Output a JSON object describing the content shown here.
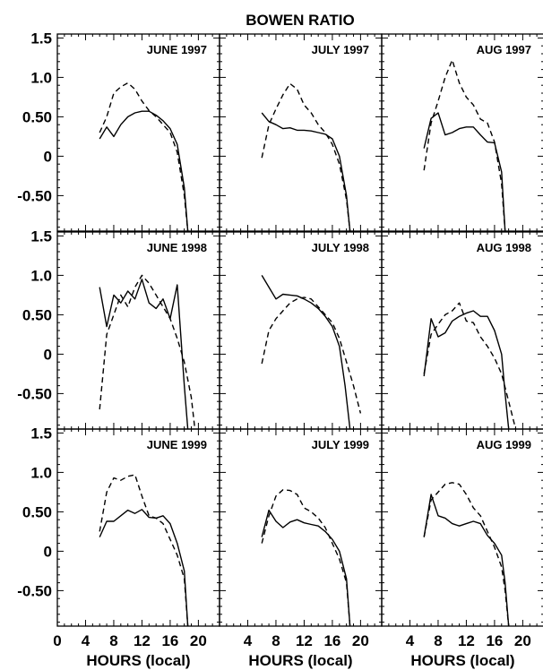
{
  "figure": {
    "title": "BOWEN RATIO",
    "xlabel": "HOURS (local)",
    "y_tick_labels": [
      "1.5",
      "1.0",
      "0.50",
      "0",
      "-0.50"
    ],
    "x_tick_labels_first": [
      "0",
      "4",
      "8",
      "12",
      "16",
      "20"
    ],
    "x_tick_labels_other": [
      "4",
      "8",
      "12",
      "16",
      "20"
    ]
  },
  "chart_data": [
    {
      "type": "line",
      "title": "JUNE 1997",
      "xlim": [
        0,
        23
      ],
      "ylim": [
        -0.95,
        1.55
      ],
      "series": [
        {
          "style": "solid",
          "x": [
            6,
            7,
            8,
            9,
            10,
            11,
            12,
            13,
            14,
            15,
            16,
            17,
            18,
            18.5
          ],
          "y": [
            0.22,
            0.37,
            0.25,
            0.4,
            0.5,
            0.55,
            0.57,
            0.57,
            0.52,
            0.45,
            0.35,
            0.15,
            -0.4,
            -0.95
          ]
        },
        {
          "style": "dashed",
          "x": [
            6,
            7,
            8,
            9,
            10,
            11,
            12,
            13,
            14,
            15,
            16,
            17,
            18,
            18.5
          ],
          "y": [
            0.3,
            0.5,
            0.8,
            0.88,
            0.93,
            0.85,
            0.7,
            0.58,
            0.5,
            0.4,
            0.3,
            0.05,
            -0.5,
            -0.95
          ]
        }
      ]
    },
    {
      "type": "line",
      "title": "JULY 1997",
      "xlim": [
        0,
        23
      ],
      "ylim": [
        -0.95,
        1.55
      ],
      "series": [
        {
          "style": "solid",
          "x": [
            6,
            7,
            8,
            9,
            10,
            11,
            12,
            13,
            14,
            15,
            16,
            17,
            18,
            18.5
          ],
          "y": [
            0.55,
            0.44,
            0.4,
            0.35,
            0.36,
            0.33,
            0.33,
            0.32,
            0.3,
            0.28,
            0.22,
            0.0,
            -0.5,
            -0.95
          ]
        },
        {
          "style": "dashed",
          "x": [
            6,
            7,
            8,
            9,
            10,
            11,
            12,
            13,
            14,
            15,
            16,
            17,
            18,
            18.5
          ],
          "y": [
            -0.02,
            0.4,
            0.6,
            0.78,
            0.92,
            0.85,
            0.65,
            0.55,
            0.4,
            0.3,
            0.15,
            -0.1,
            -0.55,
            -0.95
          ]
        }
      ]
    },
    {
      "type": "line",
      "title": "AUG 1997",
      "xlim": [
        0,
        23
      ],
      "ylim": [
        -0.95,
        1.55
      ],
      "series": [
        {
          "style": "solid",
          "x": [
            6,
            7,
            8,
            9,
            10,
            11,
            12,
            13,
            14,
            15,
            16,
            17,
            17.5
          ],
          "y": [
            0.1,
            0.48,
            0.55,
            0.27,
            0.3,
            0.35,
            0.37,
            0.37,
            0.27,
            0.18,
            0.17,
            -0.2,
            -0.95
          ]
        },
        {
          "style": "dashed",
          "x": [
            6,
            7,
            8,
            9,
            10,
            11,
            12,
            13,
            14,
            15,
            16,
            17,
            17.5
          ],
          "y": [
            -0.18,
            0.42,
            0.7,
            1.0,
            1.22,
            0.93,
            0.75,
            0.65,
            0.47,
            0.42,
            0.18,
            -0.35,
            -0.95
          ]
        }
      ]
    },
    {
      "type": "line",
      "title": "JUNE 1998",
      "xlim": [
        0,
        23
      ],
      "ylim": [
        -0.95,
        1.55
      ],
      "series": [
        {
          "style": "solid",
          "x": [
            6,
            7,
            8,
            9,
            10,
            11,
            12,
            13,
            14,
            15,
            16,
            17,
            18,
            18.5
          ],
          "y": [
            0.85,
            0.35,
            0.75,
            0.65,
            0.8,
            0.7,
            0.95,
            0.65,
            0.58,
            0.7,
            0.45,
            0.88,
            -0.4,
            -0.95
          ]
        },
        {
          "style": "dashed",
          "x": [
            6,
            7,
            8,
            9,
            10,
            11,
            12,
            13,
            14,
            15,
            16,
            17,
            18,
            19,
            19.5
          ],
          "y": [
            -0.7,
            0.25,
            0.5,
            0.75,
            0.6,
            0.85,
            1.0,
            0.9,
            0.75,
            0.6,
            0.45,
            0.2,
            -0.1,
            -0.55,
            -0.95
          ]
        }
      ]
    },
    {
      "type": "line",
      "title": "JULY 1998",
      "xlim": [
        0,
        23
      ],
      "ylim": [
        -0.95,
        1.55
      ],
      "series": [
        {
          "style": "solid",
          "x": [
            6,
            7,
            8,
            9,
            10,
            11,
            12,
            13,
            14,
            15,
            16,
            17,
            17.8,
            18.5
          ],
          "y": [
            1.0,
            0.85,
            0.7,
            0.76,
            0.75,
            0.74,
            0.7,
            0.65,
            0.58,
            0.48,
            0.35,
            0.1,
            -0.4,
            -0.95
          ]
        },
        {
          "style": "dashed",
          "x": [
            6,
            7,
            8,
            9,
            10,
            11,
            12,
            13,
            14,
            15,
            16,
            17,
            18,
            19,
            20
          ],
          "y": [
            -0.12,
            0.3,
            0.45,
            0.55,
            0.65,
            0.7,
            0.72,
            0.7,
            0.6,
            0.5,
            0.4,
            0.2,
            -0.1,
            -0.4,
            -0.75
          ]
        }
      ]
    },
    {
      "type": "line",
      "title": "AUG 1998",
      "xlim": [
        0,
        23
      ],
      "ylim": [
        -0.95,
        1.55
      ],
      "series": [
        {
          "style": "solid",
          "x": [
            6,
            7,
            8,
            9,
            10,
            11,
            12,
            13,
            14,
            15,
            16,
            17,
            17.5,
            18
          ],
          "y": [
            -0.28,
            0.45,
            0.22,
            0.27,
            0.42,
            0.48,
            0.52,
            0.55,
            0.48,
            0.48,
            0.3,
            0.0,
            -0.5,
            -0.95
          ]
        },
        {
          "style": "dashed",
          "x": [
            6,
            7,
            8,
            9,
            10,
            11,
            12,
            13,
            14,
            15,
            16,
            17,
            18,
            19
          ],
          "y": [
            -0.25,
            0.25,
            0.38,
            0.5,
            0.55,
            0.65,
            0.42,
            0.4,
            0.22,
            0.1,
            -0.05,
            -0.25,
            -0.6,
            -0.95
          ]
        }
      ]
    },
    {
      "type": "line",
      "title": "JUNE 1999",
      "xlim": [
        0,
        23
      ],
      "ylim": [
        -0.95,
        1.55
      ],
      "series": [
        {
          "style": "solid",
          "x": [
            6,
            7,
            8,
            9,
            10,
            11,
            12,
            13,
            14,
            15,
            16,
            17,
            18,
            18.5
          ],
          "y": [
            0.18,
            0.38,
            0.38,
            0.45,
            0.52,
            0.48,
            0.53,
            0.43,
            0.42,
            0.45,
            0.35,
            0.1,
            -0.25,
            -0.95
          ]
        },
        {
          "style": "dashed",
          "x": [
            6,
            7,
            8,
            9,
            10,
            11,
            12,
            13,
            14,
            15,
            16,
            17,
            18,
            18.5
          ],
          "y": [
            0.25,
            0.75,
            0.93,
            0.9,
            0.95,
            0.97,
            0.7,
            0.45,
            0.42,
            0.35,
            0.15,
            -0.05,
            -0.35,
            -0.95
          ]
        }
      ]
    },
    {
      "type": "line",
      "title": "JULY 1999",
      "xlim": [
        0,
        23
      ],
      "ylim": [
        -0.95,
        1.55
      ],
      "series": [
        {
          "style": "solid",
          "x": [
            6,
            7,
            8,
            9,
            10,
            11,
            12,
            13,
            14,
            15,
            16,
            17,
            18,
            18.5
          ],
          "y": [
            0.18,
            0.52,
            0.38,
            0.3,
            0.37,
            0.4,
            0.36,
            0.34,
            0.32,
            0.25,
            0.15,
            0.0,
            -0.35,
            -0.95
          ]
        },
        {
          "style": "dashed",
          "x": [
            6,
            7,
            8,
            9,
            10,
            11,
            12,
            13,
            14,
            15,
            16,
            17,
            18,
            18.5
          ],
          "y": [
            0.1,
            0.45,
            0.7,
            0.78,
            0.77,
            0.72,
            0.55,
            0.5,
            0.42,
            0.3,
            0.1,
            -0.1,
            -0.4,
            -0.95
          ]
        }
      ]
    },
    {
      "type": "line",
      "title": "AUG 1999",
      "xlim": [
        0,
        23
      ],
      "ylim": [
        -0.95,
        1.55
      ],
      "series": [
        {
          "style": "solid",
          "x": [
            6,
            7,
            8,
            9,
            10,
            11,
            12,
            13,
            14,
            15,
            16,
            17,
            17.5,
            18
          ],
          "y": [
            0.18,
            0.72,
            0.45,
            0.42,
            0.35,
            0.32,
            0.35,
            0.38,
            0.35,
            0.2,
            0.1,
            -0.05,
            -0.4,
            -0.95
          ]
        },
        {
          "style": "dashed",
          "x": [
            6,
            7,
            8,
            9,
            10,
            11,
            12,
            13,
            14,
            15,
            16,
            17,
            17.5,
            18
          ],
          "y": [
            0.18,
            0.65,
            0.75,
            0.85,
            0.87,
            0.85,
            0.72,
            0.55,
            0.45,
            0.25,
            0.05,
            -0.2,
            -0.5,
            -0.95
          ]
        }
      ]
    }
  ]
}
